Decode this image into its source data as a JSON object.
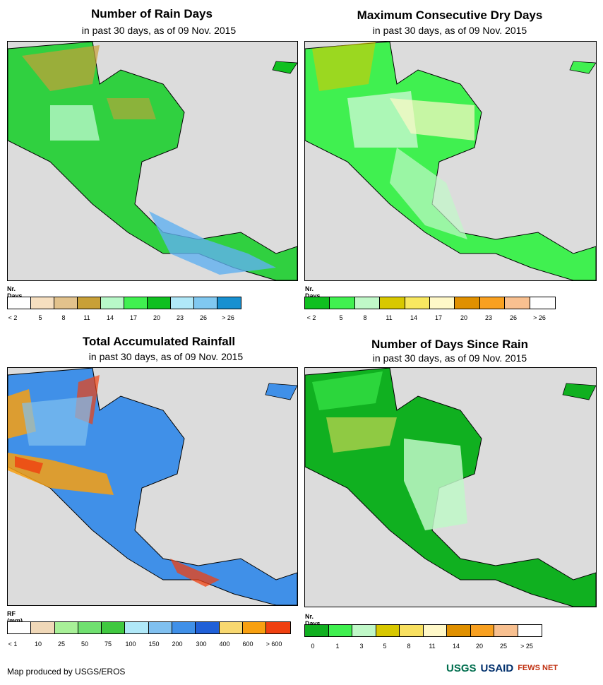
{
  "panels": {
    "rain_days": {
      "title": "Number of Rain Days",
      "subtitle": "in past 30 days, as of 09 Nov. 2015",
      "legend_title": "Nr. Days",
      "legend_labels": [
        "< 2",
        "5",
        "8",
        "11",
        "14",
        "17",
        "20",
        "23",
        "26",
        "> 26"
      ],
      "legend_colors": [
        "#ffffff",
        "#f6dfc0",
        "#e2c28c",
        "#c8a038",
        "#b8f8c8",
        "#40f050",
        "#10c020",
        "#b0e8f8",
        "#80c8f0",
        "#1890d0"
      ]
    },
    "dry_days": {
      "title": "Maximum Consecutive Dry Days",
      "subtitle": "in past 30 days, as of 09 Nov. 2015",
      "legend_title": "Nr. Days",
      "legend_labels": [
        "< 2",
        "5",
        "8",
        "11",
        "14",
        "17",
        "20",
        "23",
        "26",
        "> 26"
      ],
      "legend_colors": [
        "#10c020",
        "#40f050",
        "#c0f8c8",
        "#d8c800",
        "#f8e860",
        "#fff8c8",
        "#e09000",
        "#f8a020",
        "#f8c090",
        "#ffffff"
      ]
    },
    "rainfall": {
      "title": "Total Accumulated Rainfall",
      "subtitle": "in past 30 days, as of 09 Nov. 2015",
      "legend_title": "RF (mm)",
      "legend_labels": [
        "< 1",
        "10",
        "25",
        "50",
        "75",
        "100",
        "150",
        "200",
        "300",
        "400",
        "600",
        "> 600"
      ],
      "legend_colors": [
        "#ffffff",
        "#f0d8b8",
        "#a8f098",
        "#70e070",
        "#40c840",
        "#b0e8f8",
        "#80c0f0",
        "#4090e8",
        "#2060d8",
        "#f8d870",
        "#f8a010",
        "#f04010"
      ]
    },
    "since_rain": {
      "title": "Number of Days Since Rain",
      "subtitle": "in past 30 days, as of 09 Nov. 2015",
      "legend_title": "Nr. Days",
      "legend_labels": [
        "0",
        "1",
        "3",
        "5",
        "8",
        "11",
        "14",
        "20",
        "25",
        "> 25"
      ],
      "legend_colors": [
        "#10b020",
        "#40f050",
        "#c0f8c8",
        "#d8c800",
        "#f8e060",
        "#fff8c8",
        "#e09000",
        "#f8a020",
        "#f8c090",
        "#ffffff"
      ]
    }
  },
  "footer": "Map produced by USGS/EROS",
  "logos": [
    "USGS",
    "USAID",
    "FEWS NET"
  ]
}
